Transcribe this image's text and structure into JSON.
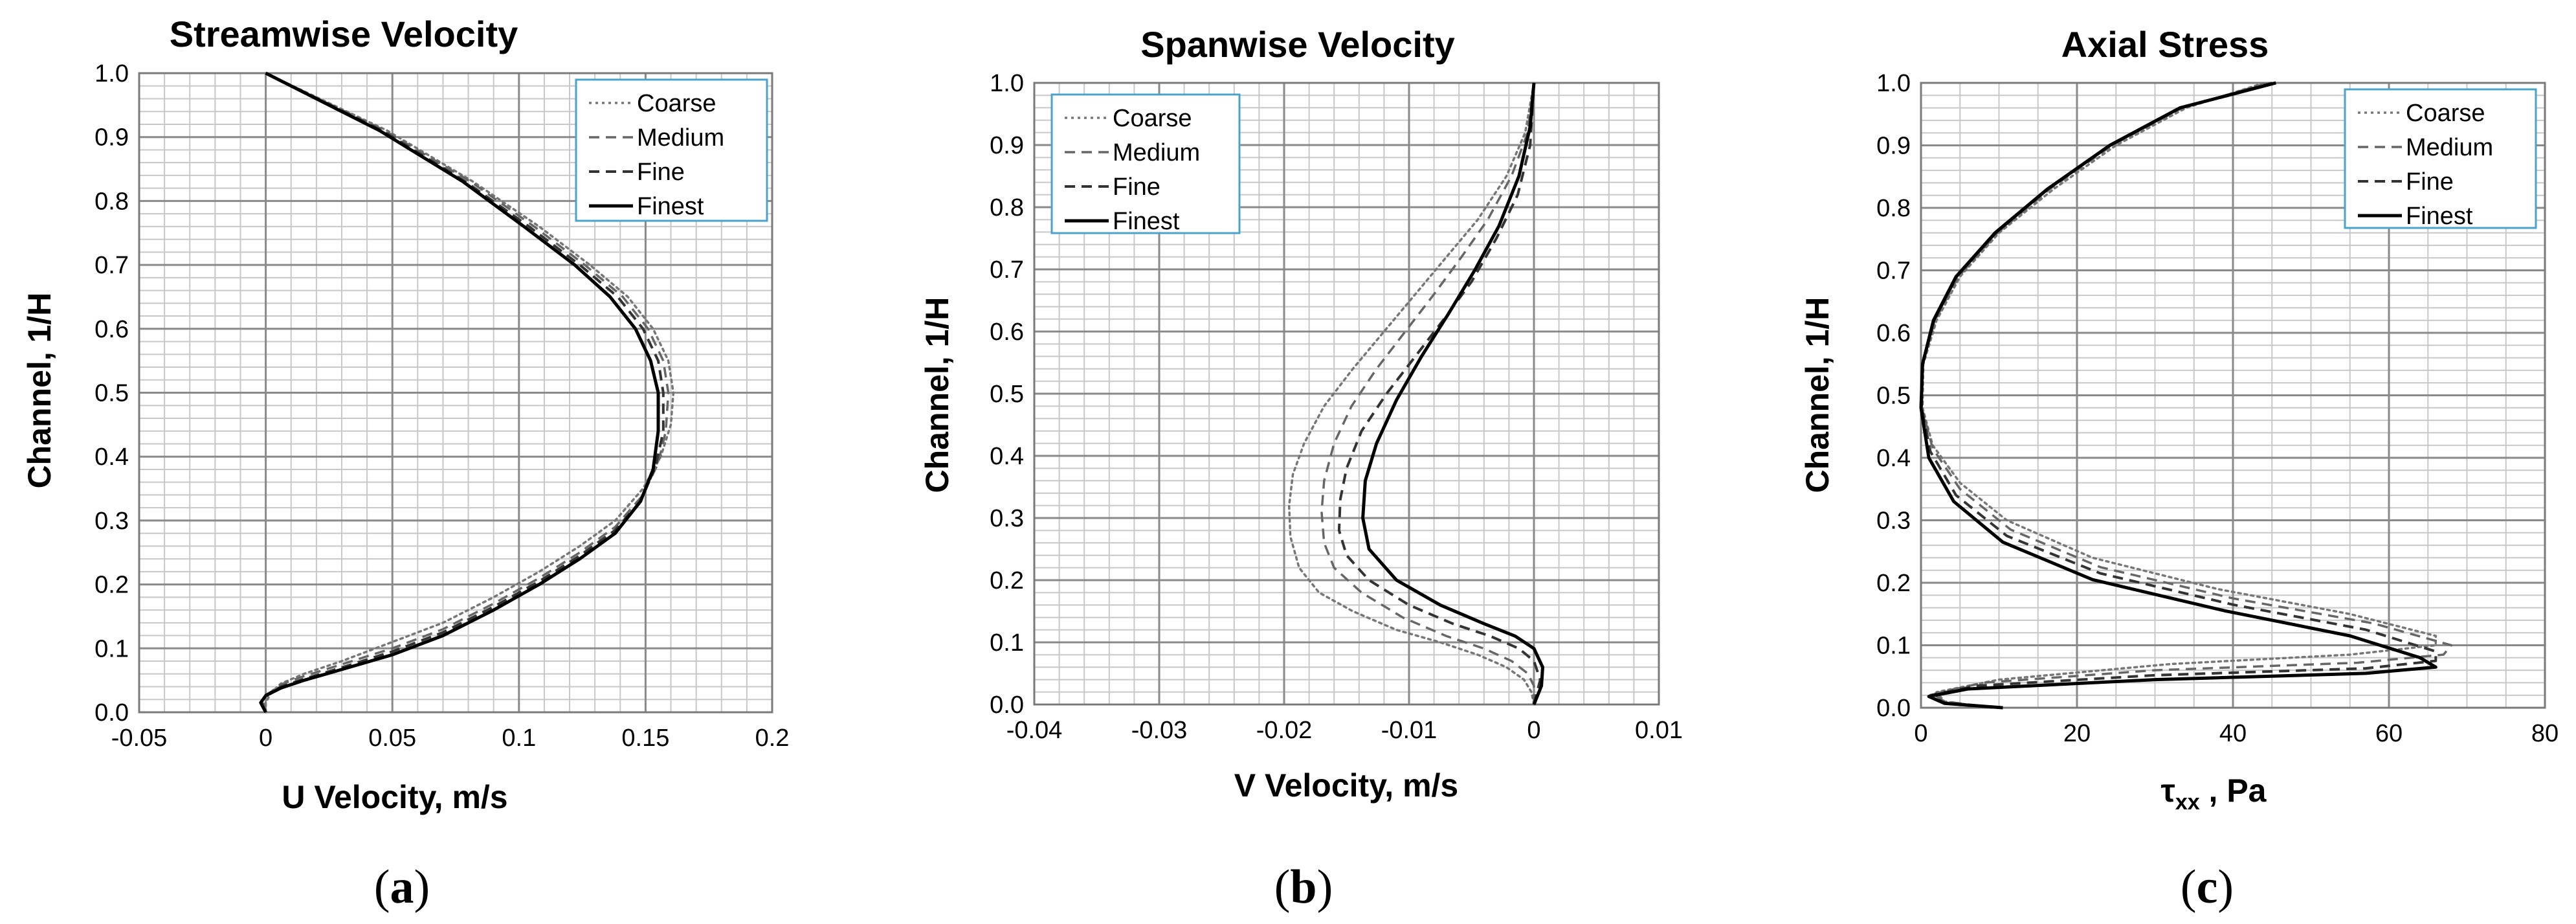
{
  "chart_data": [
    {
      "type": "line",
      "panel": "a",
      "title": "Streamwise Velocity",
      "xlabel": "U Velocity, m/s",
      "ylabel": "Channel, 1/H",
      "xlim": [
        -0.05,
        0.2
      ],
      "ylim": [
        0,
        1
      ],
      "xticks": [
        "-0.05",
        "0",
        "0.05",
        "0.1",
        "0.15",
        "0.2"
      ],
      "yticks": [
        "0.0",
        "0.1",
        "0.2",
        "0.3",
        "0.4",
        "0.5",
        "0.6",
        "0.7",
        "0.8",
        "0.9",
        "1.0"
      ],
      "grid": true,
      "legend": "top-right",
      "series": [
        {
          "name": "Coarse",
          "style": "dotted",
          "color": "#777777",
          "x": [
            0.0,
            0.0,
            0.002,
            0.006,
            0.015,
            0.03,
            0.05,
            0.07,
            0.09,
            0.108,
            0.124,
            0.138,
            0.149,
            0.156,
            0.16,
            0.161,
            0.159,
            0.153,
            0.143,
            0.128,
            0.108,
            0.082,
            0.048,
            0.0
          ],
          "y": [
            0.0,
            0.015,
            0.03,
            0.045,
            0.06,
            0.08,
            0.11,
            0.14,
            0.18,
            0.22,
            0.26,
            0.3,
            0.35,
            0.4,
            0.45,
            0.5,
            0.55,
            0.6,
            0.65,
            0.7,
            0.76,
            0.83,
            0.91,
            1.0
          ]
        },
        {
          "name": "Medium",
          "style": "dashed",
          "color": "#666666",
          "x": [
            0.0,
            -0.001,
            0.001,
            0.005,
            0.014,
            0.03,
            0.05,
            0.07,
            0.09,
            0.108,
            0.124,
            0.138,
            0.149,
            0.155,
            0.158,
            0.159,
            0.157,
            0.151,
            0.141,
            0.126,
            0.106,
            0.081,
            0.047,
            0.0
          ],
          "y": [
            0.0,
            0.015,
            0.028,
            0.042,
            0.055,
            0.075,
            0.1,
            0.13,
            0.17,
            0.21,
            0.25,
            0.29,
            0.34,
            0.39,
            0.44,
            0.5,
            0.55,
            0.6,
            0.65,
            0.7,
            0.76,
            0.83,
            0.91,
            1.0
          ]
        },
        {
          "name": "Fine",
          "style": "dashed",
          "color": "#333333",
          "x": [
            0.0,
            -0.002,
            0.0,
            0.006,
            0.015,
            0.03,
            0.05,
            0.07,
            0.09,
            0.108,
            0.124,
            0.138,
            0.148,
            0.154,
            0.157,
            0.157,
            0.155,
            0.149,
            0.139,
            0.124,
            0.104,
            0.079,
            0.046,
            0.0
          ],
          "y": [
            0.0,
            0.015,
            0.027,
            0.04,
            0.052,
            0.07,
            0.095,
            0.125,
            0.165,
            0.205,
            0.245,
            0.285,
            0.33,
            0.385,
            0.44,
            0.5,
            0.55,
            0.6,
            0.65,
            0.7,
            0.76,
            0.83,
            0.91,
            1.0
          ]
        },
        {
          "name": "Finest",
          "style": "solid",
          "color": "#000000",
          "x": [
            0.0,
            -0.002,
            0.0,
            0.006,
            0.015,
            0.03,
            0.05,
            0.07,
            0.09,
            0.108,
            0.124,
            0.138,
            0.148,
            0.153,
            0.155,
            0.155,
            0.152,
            0.146,
            0.136,
            0.122,
            0.102,
            0.078,
            0.045,
            0.0
          ],
          "y": [
            0.0,
            0.015,
            0.026,
            0.038,
            0.05,
            0.067,
            0.09,
            0.12,
            0.16,
            0.2,
            0.24,
            0.28,
            0.33,
            0.38,
            0.44,
            0.5,
            0.55,
            0.6,
            0.65,
            0.7,
            0.76,
            0.83,
            0.91,
            1.0
          ]
        }
      ]
    },
    {
      "type": "line",
      "panel": "b",
      "title": "Spanwise Velocity",
      "xlabel": "V Velocity, m/s",
      "ylabel": "Channel, 1/H",
      "xlim": [
        -0.04,
        0.01
      ],
      "ylim": [
        0,
        1
      ],
      "xticks": [
        "-0.04",
        "-0.03",
        "-0.02",
        "-0.01",
        "0",
        "0.01"
      ],
      "yticks": [
        "0.0",
        "0.1",
        "0.2",
        "0.3",
        "0.4",
        "0.5",
        "0.6",
        "0.7",
        "0.8",
        "0.9",
        "1.0"
      ],
      "grid": true,
      "legend": "top-left",
      "series": [
        {
          "name": "Coarse",
          "style": "dotted",
          "color": "#777777",
          "x": [
            0.0,
            -0.0002,
            -0.0008,
            -0.0022,
            -0.0045,
            -0.0075,
            -0.011,
            -0.0145,
            -0.0172,
            -0.0188,
            -0.0195,
            -0.0196,
            -0.0193,
            -0.0184,
            -0.0168,
            -0.0145,
            -0.012,
            -0.0095,
            -0.007,
            -0.0045,
            -0.0022,
            -0.0007,
            0.0
          ],
          "y": [
            0.0,
            0.02,
            0.04,
            0.06,
            0.08,
            0.1,
            0.12,
            0.15,
            0.18,
            0.22,
            0.27,
            0.32,
            0.37,
            0.42,
            0.48,
            0.54,
            0.6,
            0.66,
            0.72,
            0.78,
            0.85,
            0.92,
            1.0
          ]
        },
        {
          "name": "Medium",
          "style": "dashed",
          "color": "#666666",
          "x": [
            0.0,
            0.0,
            -0.0005,
            -0.0018,
            -0.004,
            -0.007,
            -0.0105,
            -0.0138,
            -0.016,
            -0.0168,
            -0.017,
            -0.0168,
            -0.016,
            -0.0146,
            -0.0126,
            -0.0103,
            -0.008,
            -0.0058,
            -0.0037,
            -0.0018,
            -0.0005,
            0.0
          ],
          "y": [
            0.0,
            0.03,
            0.05,
            0.07,
            0.09,
            0.11,
            0.14,
            0.18,
            0.22,
            0.26,
            0.31,
            0.36,
            0.42,
            0.48,
            0.54,
            0.6,
            0.66,
            0.72,
            0.78,
            0.85,
            0.92,
            1.0
          ]
        },
        {
          "name": "Fine",
          "style": "dashed",
          "color": "#333333",
          "x": [
            0.0,
            0.0005,
            0.0,
            -0.0012,
            -0.0035,
            -0.0065,
            -0.01,
            -0.0132,
            -0.015,
            -0.0156,
            -0.0155,
            -0.015,
            -0.0138,
            -0.0118,
            -0.0095,
            -0.0072,
            -0.005,
            -0.003,
            -0.0013,
            -0.0003,
            0.0
          ],
          "y": [
            0.0,
            0.04,
            0.07,
            0.09,
            0.11,
            0.13,
            0.16,
            0.2,
            0.24,
            0.28,
            0.33,
            0.38,
            0.44,
            0.5,
            0.56,
            0.62,
            0.68,
            0.75,
            0.82,
            0.9,
            1.0
          ]
        },
        {
          "name": "Finest",
          "style": "solid",
          "color": "#000000",
          "x": [
            0.0,
            0.0006,
            0.0007,
            0.0,
            -0.0015,
            -0.004,
            -0.0075,
            -0.011,
            -0.0132,
            -0.0137,
            -0.0135,
            -0.0126,
            -0.011,
            -0.009,
            -0.0068,
            -0.0047,
            -0.0028,
            -0.0012,
            -0.0003,
            0.0
          ],
          "y": [
            0.0,
            0.03,
            0.06,
            0.09,
            0.11,
            0.13,
            0.16,
            0.2,
            0.25,
            0.3,
            0.36,
            0.42,
            0.49,
            0.56,
            0.63,
            0.7,
            0.77,
            0.85,
            0.93,
            1.0
          ]
        }
      ]
    },
    {
      "type": "line",
      "panel": "c",
      "title": "Axial Stress",
      "xlabel_symbol": "τ",
      "xlabel_sub": "xx",
      "xlabel_rest": " , Pa",
      "ylabel": "Channel, 1/H",
      "xlim": [
        0,
        80
      ],
      "ylim": [
        0,
        1
      ],
      "xticks": [
        "0",
        "20",
        "40",
        "60",
        "80"
      ],
      "yticks": [
        "0.0",
        "0.1",
        "0.2",
        "0.3",
        "0.4",
        "0.5",
        "0.6",
        "0.7",
        "0.8",
        "0.9",
        "1.0"
      ],
      "grid": true,
      "legend": "top-right",
      "series": [
        {
          "name": "Coarse",
          "style": "dotted",
          "color": "#777777",
          "x": [
            9,
            3,
            2,
            10,
            32,
            55,
            66,
            66,
            55,
            38,
            22,
            11,
            5,
            1.5,
            0.2,
            0.3,
            2,
            5,
            10,
            17,
            25,
            34,
            44
          ],
          "y": [
            0.0,
            0.01,
            0.025,
            0.045,
            0.07,
            0.085,
            0.1,
            0.115,
            0.15,
            0.19,
            0.24,
            0.3,
            0.36,
            0.42,
            0.48,
            0.55,
            0.62,
            0.69,
            0.76,
            0.83,
            0.9,
            0.96,
            1.0
          ]
        },
        {
          "name": "Medium",
          "style": "dashed",
          "color": "#666666",
          "x": [
            9.5,
            3,
            1.5,
            8,
            30,
            56,
            67,
            68,
            58,
            40,
            23,
            11.5,
            5,
            1.5,
            0.1,
            0.2,
            1.8,
            4.8,
            9.8,
            16.5,
            24.5,
            33.5,
            44.5
          ],
          "y": [
            0.0,
            0.01,
            0.022,
            0.04,
            0.06,
            0.072,
            0.085,
            0.1,
            0.135,
            0.175,
            0.225,
            0.285,
            0.35,
            0.415,
            0.48,
            0.55,
            0.62,
            0.69,
            0.76,
            0.83,
            0.9,
            0.96,
            1.0
          ]
        },
        {
          "name": "Fine",
          "style": "dashed",
          "color": "#333333",
          "x": [
            10,
            3,
            1.2,
            7,
            30,
            57,
            66,
            66,
            57,
            40,
            23,
            11,
            4.5,
            1.2,
            0.1,
            0.2,
            1.7,
            4.6,
            9.6,
            16.3,
            24.3,
            33.3,
            45
          ],
          "y": [
            0.0,
            0.008,
            0.02,
            0.035,
            0.052,
            0.063,
            0.075,
            0.09,
            0.125,
            0.165,
            0.215,
            0.275,
            0.34,
            0.41,
            0.48,
            0.55,
            0.62,
            0.69,
            0.76,
            0.83,
            0.9,
            0.96,
            1.0
          ]
        },
        {
          "name": "Finest",
          "style": "solid",
          "color": "#000000",
          "x": [
            10.5,
            3,
            1,
            6,
            30,
            57,
            66,
            64,
            55,
            39,
            22,
            10.5,
            4.2,
            1.0,
            0.0,
            0.2,
            1.6,
            4.5,
            9.5,
            16.2,
            24.2,
            33.2,
            45.5
          ],
          "y": [
            0.0,
            0.007,
            0.018,
            0.03,
            0.045,
            0.055,
            0.065,
            0.08,
            0.115,
            0.155,
            0.205,
            0.265,
            0.33,
            0.4,
            0.48,
            0.55,
            0.62,
            0.69,
            0.76,
            0.83,
            0.9,
            0.96,
            1.0
          ]
        }
      ]
    }
  ],
  "panel_labels": [
    "(a)",
    "(b)",
    "(c)"
  ],
  "colors": {
    "grid_major": "#8a8a8a",
    "grid_minor": "#c8c8c8",
    "legend_border": "#4aa3c8",
    "axis": "#000000"
  }
}
